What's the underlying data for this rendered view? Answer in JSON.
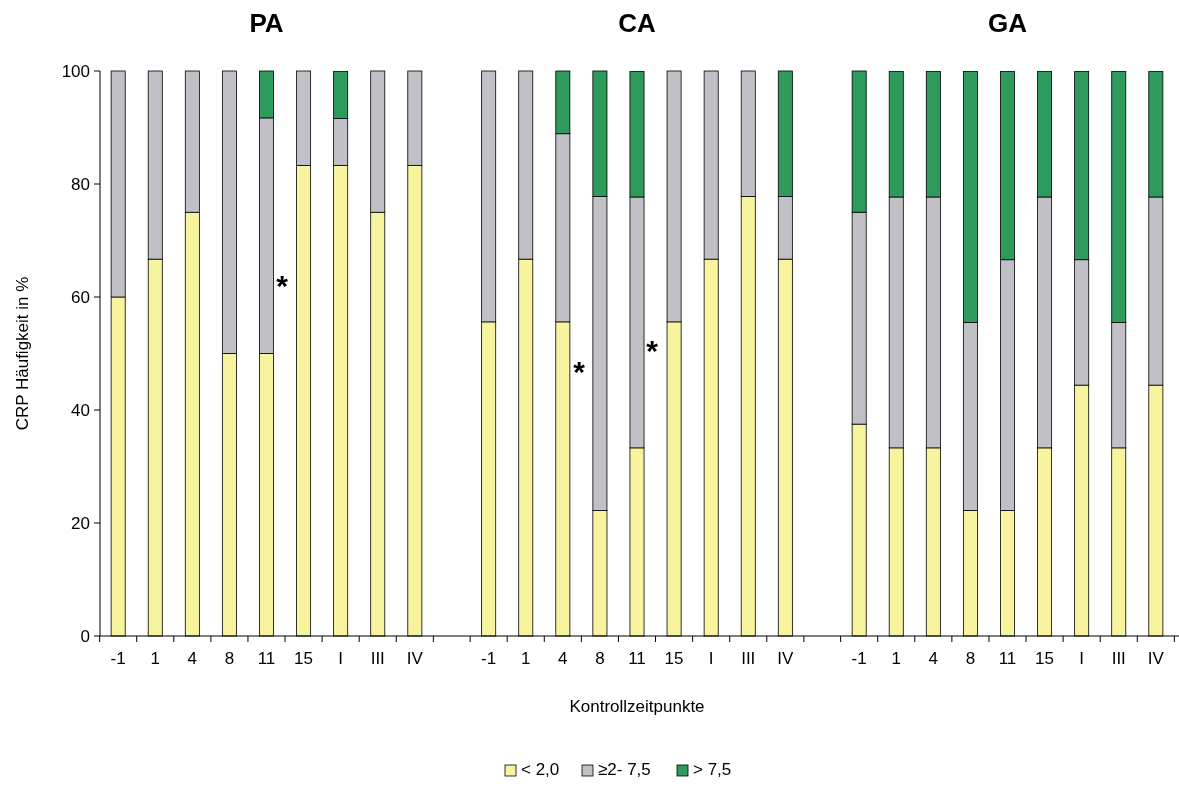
{
  "chart_data": [
    {
      "type": "bar",
      "title": "PA",
      "ylabel": "CRP Häufigkeit in %",
      "stacked": true,
      "categories": [
        "-1",
        "1",
        "4",
        "8",
        "11",
        "15",
        "I",
        "III",
        "IV"
      ],
      "ylim": [
        0,
        100
      ],
      "yticks": [
        0,
        20,
        40,
        60,
        80,
        100
      ],
      "series": [
        {
          "color": "#f7f39f",
          "values": [
            60,
            66.7,
            75,
            50,
            50,
            83.3,
            83.3,
            75,
            83.3
          ]
        },
        {
          "color": "#c0c0c6",
          "values": [
            40,
            33.3,
            25,
            50,
            41.7,
            16.7,
            8.3,
            25,
            16.7
          ]
        },
        {
          "color": "#2e9a5c",
          "values": [
            0,
            0,
            0,
            0,
            8.3,
            0,
            8.3,
            0,
            0
          ]
        }
      ],
      "annotations": [
        "*"
      ]
    },
    {
      "type": "bar",
      "title": "CA",
      "xlabel": "Kontrollzeitpunkte",
      "stacked": true,
      "legend": "bottom",
      "tick_labels": "x",
      "categories": [
        "-1",
        "1",
        "4",
        "8",
        "11",
        "15",
        "I",
        "III",
        "IV"
      ],
      "ylim": [
        0,
        100
      ],
      "series": [
        {
          "name": "< 2,0",
          "color": "#f7f39f",
          "values": [
            55.6,
            66.7,
            55.6,
            22.2,
            33.3,
            55.6,
            66.7,
            77.8,
            66.7
          ]
        },
        {
          "name": "≥2- 7,5",
          "color": "#c0c0c6",
          "values": [
            44.4,
            33.3,
            33.3,
            55.6,
            44.4,
            44.4,
            33.3,
            22.2,
            11.1
          ]
        },
        {
          "name": "> 7,5",
          "color": "#2e9a5c",
          "values": [
            0,
            0,
            11.1,
            22.2,
            22.2,
            0,
            0,
            0,
            22.2
          ]
        }
      ],
      "annotations": [
        "*",
        "*"
      ]
    },
    {
      "type": "bar",
      "title": "GA",
      "stacked": true,
      "tick_labels": "x",
      "categories": [
        "-1",
        "1",
        "4",
        "8",
        "11",
        "15",
        "I",
        "III",
        "IV"
      ],
      "ylim": [
        0,
        100
      ],
      "series": [
        {
          "color": "#f7f39f",
          "values": [
            37.5,
            33.3,
            33.3,
            22.2,
            22.2,
            33.3,
            44.4,
            33.3,
            44.4
          ]
        },
        {
          "color": "#c0c0c6",
          "values": [
            37.5,
            44.4,
            44.4,
            33.3,
            44.4,
            44.4,
            22.2,
            22.2,
            33.3
          ]
        },
        {
          "color": "#2e9a5c",
          "values": [
            25,
            22.2,
            22.2,
            44.4,
            33.3,
            22.2,
            33.3,
            44.4,
            22.2
          ]
        }
      ]
    }
  ]
}
